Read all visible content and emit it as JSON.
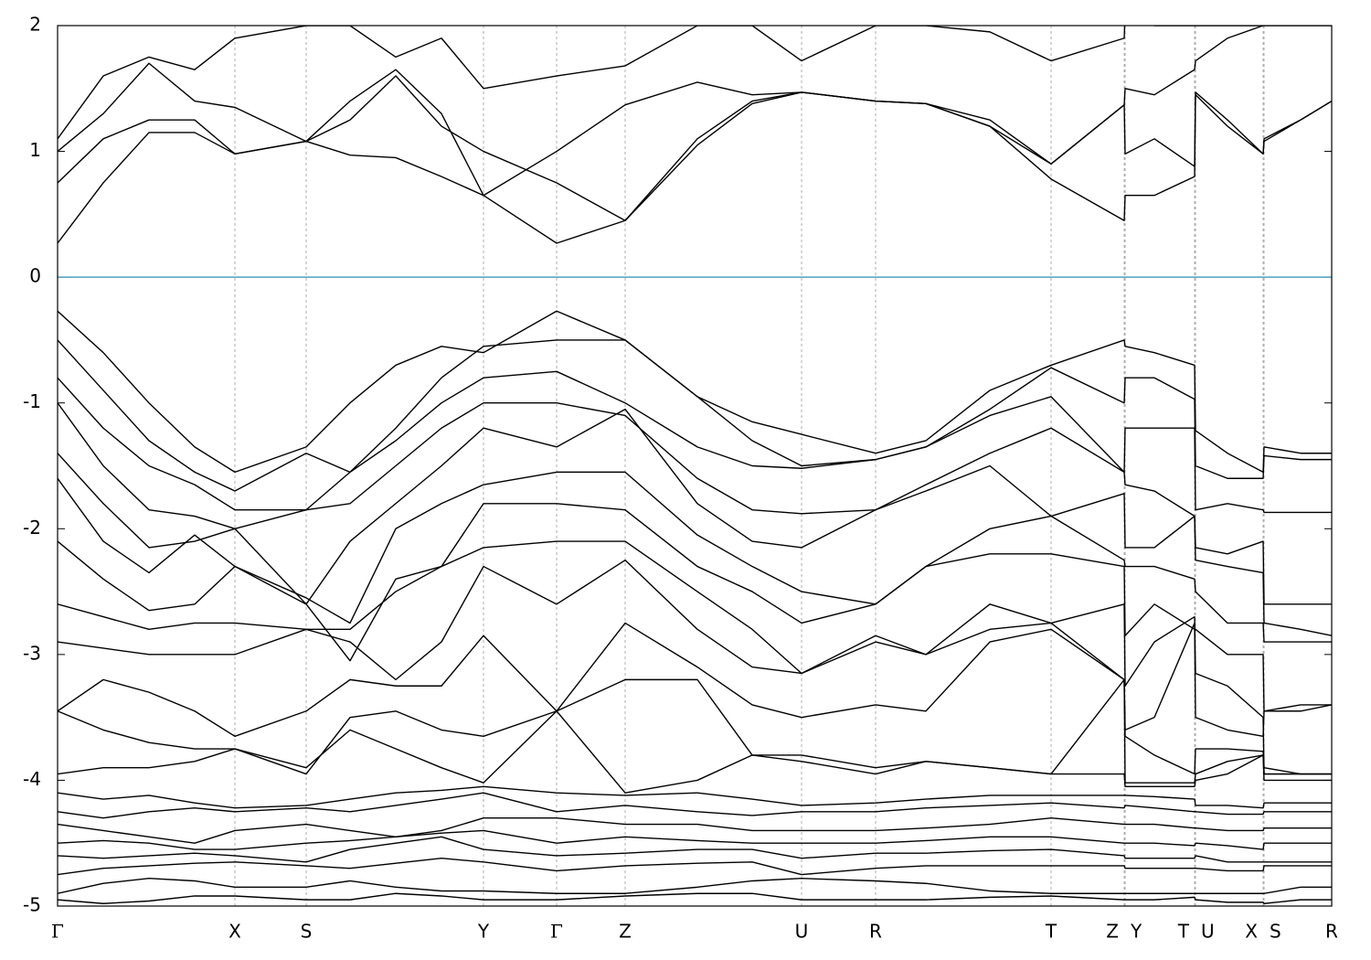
{
  "chart_data": {
    "type": "line",
    "xlim": [
      0,
      13.94
    ],
    "ylim": [
      -5,
      2
    ],
    "yticks": [
      -5,
      -4,
      -3,
      -2,
      -1,
      0,
      1,
      2
    ],
    "xticks": [
      {
        "value": 0,
        "label": "Γ"
      },
      {
        "value": 1.94,
        "label": "X"
      },
      {
        "value": 2.72,
        "label": "S"
      },
      {
        "value": 4.66,
        "label": "Y"
      },
      {
        "value": 5.46,
        "label": "Γ"
      },
      {
        "value": 6.21,
        "label": "Z"
      },
      {
        "value": 8.14,
        "label": "U"
      },
      {
        "value": 8.95,
        "label": "R"
      },
      {
        "value": 10.87,
        "label": "T"
      },
      {
        "value": 11.67,
        "label": "Z"
      },
      {
        "value": 11.68,
        "label": "Y"
      },
      {
        "value": 12.44,
        "label": "T"
      },
      {
        "value": 12.45,
        "label": "U"
      },
      {
        "value": 13.19,
        "label": "X"
      },
      {
        "value": 13.2,
        "label": "S"
      },
      {
        "value": 13.94,
        "label": "R"
      }
    ],
    "xgrid": true,
    "color": "#000000",
    "reference_line": {
      "y": 0,
      "color": "#4aa3c0"
    },
    "x": [
      0,
      0.5,
      1.0,
      1.5,
      1.94,
      2.72,
      3.2,
      3.7,
      4.2,
      4.66,
      5.46,
      6.21,
      7.0,
      7.6,
      8.14,
      8.95,
      9.5,
      10.2,
      10.87,
      11.67,
      11.68,
      12.0,
      12.44,
      12.45,
      12.8,
      13.19,
      13.2,
      13.6,
      13.94
    ],
    "series": [
      {
        "values": [
          0.27,
          0.75,
          1.15,
          1.15,
          0.98,
          1.08,
          0.97,
          0.95,
          0.8,
          0.65,
          0.27,
          0.45,
          1.05,
          1.38,
          1.47,
          1.4,
          1.38,
          1.2,
          0.78,
          0.45,
          0.65,
          0.65,
          0.8,
          1.47,
          1.25,
          0.98,
          1.08,
          1.25,
          1.4
        ]
      },
      {
        "values": [
          0.75,
          1.1,
          1.25,
          1.25,
          0.98,
          1.08,
          1.25,
          1.6,
          1.2,
          1.0,
          0.75,
          0.45,
          1.1,
          1.4,
          1.47,
          1.4,
          1.38,
          1.25,
          0.9,
          1.37,
          0.98,
          1.1,
          0.88,
          1.45,
          1.2,
          0.98,
          1.1,
          1.25,
          1.4
        ]
      },
      {
        "values": [
          1.0,
          1.3,
          1.7,
          1.4,
          1.35,
          1.08,
          1.4,
          1.65,
          1.3,
          0.65,
          1.0,
          1.37,
          1.55,
          1.45,
          1.47,
          1.4,
          1.38,
          1.2,
          0.9,
          1.37,
          1.5,
          1.45,
          1.65,
          1.72,
          1.9,
          2.0,
          2.0,
          2.0,
          2.0
        ]
      },
      {
        "values": [
          1.1,
          1.6,
          1.75,
          1.65,
          1.9,
          2.0,
          2.0,
          1.75,
          1.9,
          1.5,
          1.6,
          1.68,
          2.0,
          2.0,
          1.72,
          2.0,
          2.0,
          1.95,
          1.72,
          1.9,
          2.1,
          2.0,
          2.0,
          2.0,
          2.0,
          2.0,
          2.1,
          2.1,
          2.1
        ]
      },
      {
        "values": [
          -0.27,
          -0.6,
          -1.0,
          -1.35,
          -1.55,
          -1.35,
          -1.0,
          -0.7,
          -0.55,
          -0.6,
          -0.27,
          -0.5,
          -0.95,
          -1.15,
          -1.25,
          -1.4,
          -1.3,
          -0.9,
          -0.7,
          -0.5,
          -0.55,
          -0.6,
          -0.7,
          -1.22,
          -1.4,
          -1.55,
          -1.35,
          -1.4,
          -1.4
        ]
      },
      {
        "values": [
          -0.5,
          -0.9,
          -1.3,
          -1.55,
          -1.7,
          -1.4,
          -1.55,
          -1.2,
          -0.8,
          -0.55,
          -0.5,
          -0.5,
          -0.95,
          -1.3,
          -1.5,
          -1.45,
          -1.35,
          -1.05,
          -0.72,
          -1.0,
          -0.8,
          -0.8,
          -0.97,
          -1.5,
          -1.6,
          -1.6,
          -1.42,
          -1.45,
          -1.45
        ]
      },
      {
        "values": [
          -0.8,
          -1.2,
          -1.5,
          -1.65,
          -1.85,
          -1.85,
          -1.55,
          -1.3,
          -1.0,
          -0.8,
          -0.75,
          -1.0,
          -1.35,
          -1.5,
          -1.52,
          -1.45,
          -1.35,
          -1.1,
          -0.95,
          -1.55,
          -1.2,
          -1.2,
          -1.2,
          -1.85,
          -1.8,
          -1.85,
          -1.87,
          -1.87,
          -1.87
        ]
      },
      {
        "values": [
          -1.0,
          -1.5,
          -1.85,
          -1.9,
          -2.0,
          -1.85,
          -1.8,
          -1.5,
          -1.2,
          -1.0,
          -1.0,
          -1.1,
          -1.6,
          -1.85,
          -1.88,
          -1.85,
          -1.65,
          -1.4,
          -1.2,
          -1.55,
          -1.65,
          -1.7,
          -1.9,
          -2.15,
          -2.2,
          -2.1,
          -2.6,
          -2.6,
          -2.6
        ]
      },
      {
        "values": [
          -1.4,
          -1.8,
          -2.15,
          -2.1,
          -2.0,
          -2.6,
          -2.1,
          -1.8,
          -1.5,
          -1.2,
          -1.35,
          -1.05,
          -1.8,
          -2.1,
          -2.15,
          -1.85,
          -1.7,
          -1.5,
          -1.9,
          -1.72,
          -2.15,
          -2.15,
          -1.9,
          -2.25,
          -2.3,
          -2.35,
          -2.75,
          -2.8,
          -2.85
        ]
      },
      {
        "values": [
          -1.6,
          -2.1,
          -2.35,
          -2.05,
          -2.3,
          -2.55,
          -2.75,
          -2.0,
          -1.8,
          -1.65,
          -1.55,
          -1.55,
          -2.05,
          -2.3,
          -2.5,
          -2.6,
          -2.3,
          -2.0,
          -1.9,
          -2.25,
          -2.3,
          -2.3,
          -2.4,
          -2.5,
          -2.75,
          -2.75,
          -2.9,
          -2.9,
          -2.9
        ]
      },
      {
        "values": [
          -2.1,
          -2.4,
          -2.65,
          -2.6,
          -2.3,
          -2.6,
          -3.05,
          -2.4,
          -2.3,
          -1.8,
          -1.8,
          -1.85,
          -2.3,
          -2.5,
          -2.75,
          -2.6,
          -2.3,
          -2.2,
          -2.2,
          -2.3,
          -2.85,
          -2.6,
          -2.8,
          -2.8,
          -3.0,
          -3.0,
          -3.45,
          -3.4,
          -3.4
        ]
      },
      {
        "values": [
          -2.6,
          -2.7,
          -2.8,
          -2.75,
          -2.75,
          -2.8,
          -2.8,
          -2.5,
          -2.3,
          -2.15,
          -2.1,
          -2.1,
          -2.5,
          -2.8,
          -3.15,
          -2.9,
          -3.0,
          -2.6,
          -2.75,
          -2.6,
          -3.25,
          -2.9,
          -2.7,
          -3.15,
          -3.25,
          -3.5,
          -3.95,
          -3.95,
          -3.95
        ]
      },
      {
        "values": [
          -2.9,
          -2.95,
          -3.0,
          -3.0,
          -3.0,
          -2.8,
          -2.9,
          -3.2,
          -2.9,
          -2.3,
          -2.6,
          -2.25,
          -2.8,
          -3.1,
          -3.15,
          -2.85,
          -3.0,
          -2.8,
          -2.75,
          -3.2,
          -3.6,
          -3.5,
          -2.75,
          -3.5,
          -3.6,
          -3.65,
          -3.45,
          -3.45,
          -3.4
        ]
      },
      {
        "values": [
          -3.45,
          -3.2,
          -3.3,
          -3.45,
          -3.65,
          -3.45,
          -3.2,
          -3.25,
          -3.25,
          -2.85,
          -3.45,
          -2.75,
          -3.1,
          -3.4,
          -3.5,
          -3.4,
          -3.45,
          -2.9,
          -2.8,
          -3.2,
          -3.65,
          -3.8,
          -3.95,
          -3.75,
          -3.75,
          -3.77,
          -3.9,
          -3.95,
          -3.95
        ]
      },
      {
        "values": [
          -3.45,
          -3.6,
          -3.7,
          -3.75,
          -3.75,
          -3.95,
          -3.5,
          -3.45,
          -3.6,
          -3.65,
          -3.45,
          -3.2,
          -3.2,
          -3.8,
          -3.8,
          -3.9,
          -3.85,
          -3.9,
          -3.95,
          -3.2,
          -4.02,
          -4.02,
          -4.02,
          -3.95,
          -3.85,
          -3.8,
          -3.95,
          -3.95,
          -3.95
        ]
      },
      {
        "values": [
          -3.95,
          -3.9,
          -3.9,
          -3.85,
          -3.75,
          -3.9,
          -3.6,
          -3.75,
          -3.9,
          -4.02,
          -3.45,
          -4.1,
          -4.0,
          -3.8,
          -3.85,
          -3.95,
          -3.85,
          -3.9,
          -3.95,
          -3.95,
          -4.05,
          -4.05,
          -4.05,
          -4.0,
          -3.95,
          -3.8,
          -4.0,
          -4.0,
          -4.0
        ]
      },
      {
        "values": [
          -4.1,
          -4.15,
          -4.12,
          -4.18,
          -4.22,
          -4.2,
          -4.15,
          -4.1,
          -4.08,
          -4.05,
          -4.1,
          -4.12,
          -4.1,
          -4.15,
          -4.2,
          -4.18,
          -4.15,
          -4.12,
          -4.12,
          -4.12,
          -4.12,
          -4.13,
          -4.15,
          -4.2,
          -4.2,
          -4.22,
          -4.18,
          -4.18,
          -4.18
        ]
      },
      {
        "values": [
          -4.25,
          -4.3,
          -4.25,
          -4.22,
          -4.25,
          -4.22,
          -4.25,
          -4.2,
          -4.15,
          -4.1,
          -4.25,
          -4.2,
          -4.25,
          -4.28,
          -4.25,
          -4.25,
          -4.22,
          -4.2,
          -4.18,
          -4.22,
          -4.2,
          -4.22,
          -4.25,
          -4.25,
          -4.27,
          -4.27,
          -4.25,
          -4.25,
          -4.25
        ]
      },
      {
        "values": [
          -4.35,
          -4.4,
          -4.45,
          -4.5,
          -4.4,
          -4.35,
          -4.4,
          -4.45,
          -4.4,
          -4.3,
          -4.3,
          -4.35,
          -4.35,
          -4.4,
          -4.4,
          -4.4,
          -4.38,
          -4.35,
          -4.3,
          -4.35,
          -4.35,
          -4.35,
          -4.38,
          -4.38,
          -4.4,
          -4.4,
          -4.38,
          -4.38,
          -4.38
        ]
      },
      {
        "values": [
          -4.5,
          -4.48,
          -4.5,
          -4.55,
          -4.55,
          -4.5,
          -4.48,
          -4.45,
          -4.42,
          -4.4,
          -4.5,
          -4.45,
          -4.48,
          -4.5,
          -4.5,
          -4.5,
          -4.48,
          -4.45,
          -4.45,
          -4.5,
          -4.5,
          -4.5,
          -4.52,
          -4.5,
          -4.52,
          -4.55,
          -4.5,
          -4.5,
          -4.5
        ]
      },
      {
        "values": [
          -4.6,
          -4.62,
          -4.6,
          -4.58,
          -4.6,
          -4.65,
          -4.55,
          -4.5,
          -4.45,
          -4.55,
          -4.6,
          -4.58,
          -4.55,
          -4.55,
          -4.62,
          -4.58,
          -4.58,
          -4.56,
          -4.55,
          -4.6,
          -4.62,
          -4.62,
          -4.62,
          -4.6,
          -4.65,
          -4.65,
          -4.65,
          -4.65,
          -4.65
        ]
      },
      {
        "values": [
          -4.75,
          -4.7,
          -4.68,
          -4.66,
          -4.65,
          -4.68,
          -4.7,
          -4.66,
          -4.62,
          -4.65,
          -4.72,
          -4.68,
          -4.66,
          -4.65,
          -4.75,
          -4.7,
          -4.68,
          -4.68,
          -4.68,
          -4.68,
          -4.7,
          -4.7,
          -4.7,
          -4.7,
          -4.72,
          -4.72,
          -4.68,
          -4.68,
          -4.68
        ]
      },
      {
        "values": [
          -4.9,
          -4.82,
          -4.78,
          -4.8,
          -4.85,
          -4.85,
          -4.8,
          -4.85,
          -4.88,
          -4.88,
          -4.9,
          -4.9,
          -4.85,
          -4.8,
          -4.78,
          -4.8,
          -4.82,
          -4.88,
          -4.9,
          -4.9,
          -4.9,
          -4.9,
          -4.9,
          -4.9,
          -4.9,
          -4.9,
          -4.9,
          -4.85,
          -4.85
        ]
      },
      {
        "values": [
          -4.95,
          -4.98,
          -4.96,
          -4.92,
          -4.92,
          -4.95,
          -4.95,
          -4.9,
          -4.92,
          -4.95,
          -4.95,
          -4.92,
          -4.9,
          -4.9,
          -4.95,
          -4.95,
          -4.95,
          -4.93,
          -4.92,
          -4.95,
          -4.95,
          -4.95,
          -4.93,
          -4.95,
          -4.97,
          -4.97,
          -4.98,
          -4.95,
          -4.95
        ]
      }
    ]
  }
}
